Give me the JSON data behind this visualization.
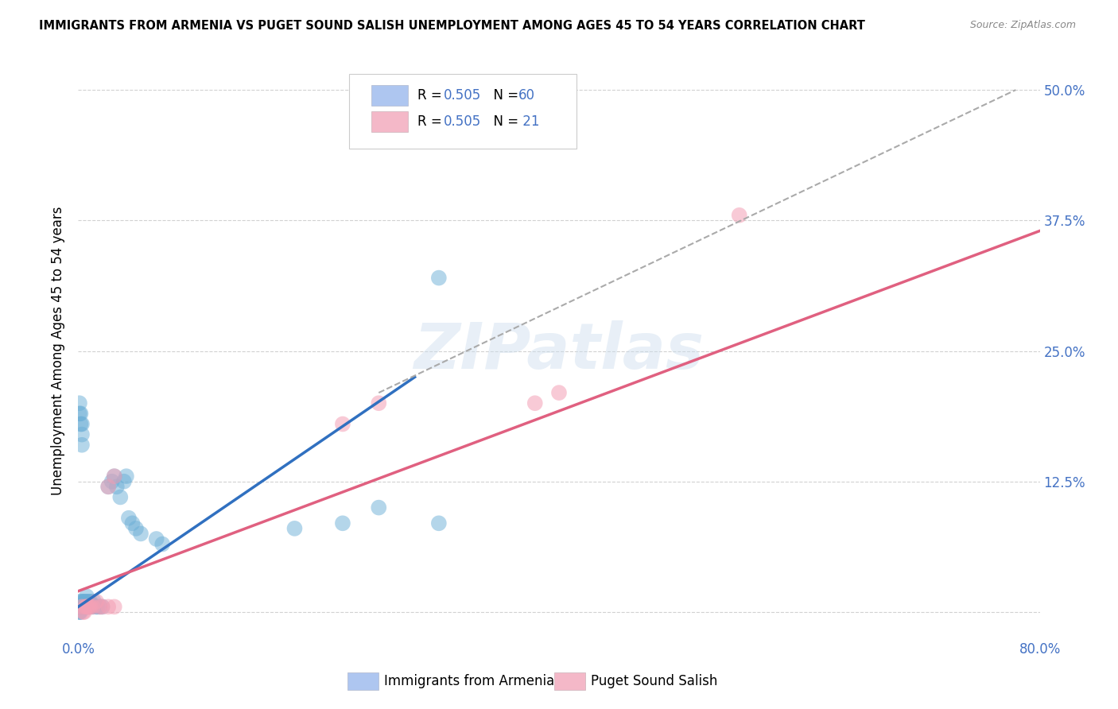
{
  "title": "IMMIGRANTS FROM ARMENIA VS PUGET SOUND SALISH UNEMPLOYMENT AMONG AGES 45 TO 54 YEARS CORRELATION CHART",
  "source": "Source: ZipAtlas.com",
  "ylabel": "Unemployment Among Ages 45 to 54 years",
  "watermark": "ZIPatlas",
  "xmin": 0.0,
  "xmax": 0.8,
  "ymin": -0.025,
  "ymax": 0.525,
  "xticks": [
    0.0,
    0.2,
    0.4,
    0.6,
    0.8
  ],
  "xtick_labels": [
    "0.0%",
    "",
    "",
    "",
    "80.0%"
  ],
  "yticks": [
    0.0,
    0.125,
    0.25,
    0.375,
    0.5
  ],
  "ytick_labels": [
    "",
    "12.5%",
    "25.0%",
    "37.5%",
    "50.0%"
  ],
  "blue_scatter_color": "#6baed6",
  "pink_scatter_color": "#f4a0b5",
  "blue_line_color": "#3070c0",
  "pink_line_color": "#e06080",
  "gray_dash_color": "#aaaaaa",
  "axis_color": "#4472c4",
  "background_color": "#ffffff",
  "grid_color": "#cccccc",
  "legend_blue_color": "#aec6f0",
  "legend_pink_color": "#f4b8c8",
  "blue_scatter": [
    [
      0.001,
      0.005
    ],
    [
      0.001,
      0.005
    ],
    [
      0.001,
      0.005
    ],
    [
      0.001,
      0.01
    ],
    [
      0.001,
      0.005
    ],
    [
      0.001,
      0.005
    ],
    [
      0.001,
      0.0
    ],
    [
      0.001,
      0.0
    ],
    [
      0.002,
      0.005
    ],
    [
      0.002,
      0.005
    ],
    [
      0.002,
      0.0
    ],
    [
      0.002,
      0.005
    ],
    [
      0.003,
      0.005
    ],
    [
      0.003,
      0.005
    ],
    [
      0.003,
      0.005
    ],
    [
      0.003,
      0.01
    ],
    [
      0.004,
      0.005
    ],
    [
      0.004,
      0.01
    ],
    [
      0.005,
      0.005
    ],
    [
      0.005,
      0.01
    ],
    [
      0.006,
      0.005
    ],
    [
      0.006,
      0.01
    ],
    [
      0.007,
      0.005
    ],
    [
      0.007,
      0.015
    ],
    [
      0.008,
      0.005
    ],
    [
      0.008,
      0.01
    ],
    [
      0.009,
      0.005
    ],
    [
      0.009,
      0.01
    ],
    [
      0.01,
      0.005
    ],
    [
      0.01,
      0.01
    ],
    [
      0.012,
      0.005
    ],
    [
      0.013,
      0.01
    ],
    [
      0.015,
      0.005
    ],
    [
      0.016,
      0.005
    ],
    [
      0.018,
      0.005
    ],
    [
      0.02,
      0.005
    ],
    [
      0.025,
      0.12
    ],
    [
      0.028,
      0.125
    ],
    [
      0.03,
      0.13
    ],
    [
      0.032,
      0.12
    ],
    [
      0.035,
      0.11
    ],
    [
      0.038,
      0.125
    ],
    [
      0.04,
      0.13
    ],
    [
      0.042,
      0.09
    ],
    [
      0.045,
      0.085
    ],
    [
      0.048,
      0.08
    ],
    [
      0.052,
      0.075
    ],
    [
      0.001,
      0.2
    ],
    [
      0.001,
      0.19
    ],
    [
      0.002,
      0.19
    ],
    [
      0.002,
      0.18
    ],
    [
      0.003,
      0.18
    ],
    [
      0.003,
      0.17
    ],
    [
      0.003,
      0.16
    ],
    [
      0.065,
      0.07
    ],
    [
      0.07,
      0.065
    ],
    [
      0.22,
      0.085
    ],
    [
      0.18,
      0.08
    ],
    [
      0.25,
      0.1
    ],
    [
      0.3,
      0.085
    ],
    [
      0.3,
      0.32
    ]
  ],
  "pink_scatter": [
    [
      0.003,
      0.005
    ],
    [
      0.004,
      0.0
    ],
    [
      0.005,
      0.0
    ],
    [
      0.006,
      0.005
    ],
    [
      0.007,
      0.005
    ],
    [
      0.008,
      0.005
    ],
    [
      0.009,
      0.005
    ],
    [
      0.01,
      0.005
    ],
    [
      0.012,
      0.005
    ],
    [
      0.015,
      0.01
    ],
    [
      0.018,
      0.005
    ],
    [
      0.02,
      0.005
    ],
    [
      0.025,
      0.005
    ],
    [
      0.03,
      0.005
    ],
    [
      0.025,
      0.12
    ],
    [
      0.03,
      0.13
    ],
    [
      0.22,
      0.18
    ],
    [
      0.25,
      0.2
    ],
    [
      0.38,
      0.2
    ],
    [
      0.55,
      0.38
    ],
    [
      0.4,
      0.21
    ]
  ],
  "blue_line": {
    "x0": 0.0,
    "x1": 0.28,
    "y0": 0.005,
    "y1": 0.225
  },
  "gray_dash_line": {
    "x0": 0.25,
    "x1": 0.78,
    "y0": 0.21,
    "y1": 0.5
  },
  "pink_line": {
    "x0": 0.0,
    "x1": 0.8,
    "y0": 0.02,
    "y1": 0.365
  },
  "title_fontsize": 10.5,
  "source_fontsize": 9,
  "tick_fontsize": 12,
  "ylabel_fontsize": 12
}
